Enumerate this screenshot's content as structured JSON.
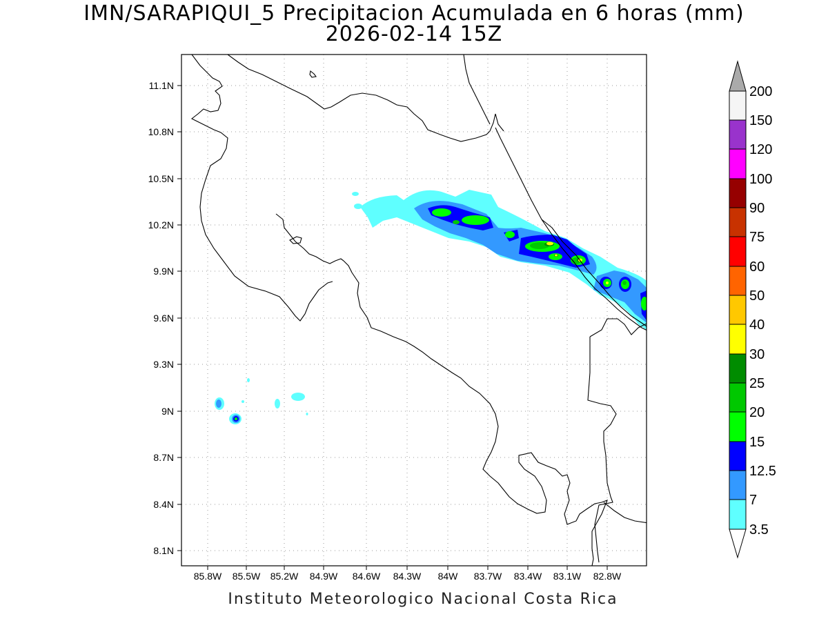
{
  "title": {
    "line1": "IMN/SARAPIQUI_5 Precipitacion Acumulada en 6 horas (mm)",
    "line2": "2026-02-14 15Z"
  },
  "footer": "Instituto Meteorologico Nacional Costa Rica",
  "map": {
    "lon_range": [
      -85.99,
      -82.54
    ],
    "lat_range": [
      8.02,
      11.26
    ],
    "lon_ticks": [
      "85.8W",
      "85.5W",
      "85.2W",
      "84.9W",
      "84.6W",
      "84.3W",
      "84W",
      "83.7W",
      "83.4W",
      "83.1W",
      "82.8W"
    ],
    "lat_ticks": [
      "11.1N",
      "10.8N",
      "10.5N",
      "10.2N",
      "9.9N",
      "9.6N",
      "9.3N",
      "9N",
      "8.7N",
      "8.4N",
      "8.1N"
    ],
    "grid": "dotted"
  },
  "colorbar": {
    "labels": [
      "3.5",
      "7",
      "12.5",
      "15",
      "20",
      "25",
      "30",
      "40",
      "50",
      "60",
      "75",
      "90",
      "100",
      "120",
      "150",
      "200"
    ],
    "colors": [
      "#ffffff",
      "#5fffff",
      "#3399ff",
      "#0000ff",
      "#00ff00",
      "#00c800",
      "#008c00",
      "#ffff00",
      "#ffc800",
      "#ff6400",
      "#ff0000",
      "#c83200",
      "#960000",
      "#ff00ff",
      "#9933cc",
      "#f5f5f5",
      "#aaaaaa"
    ]
  }
}
